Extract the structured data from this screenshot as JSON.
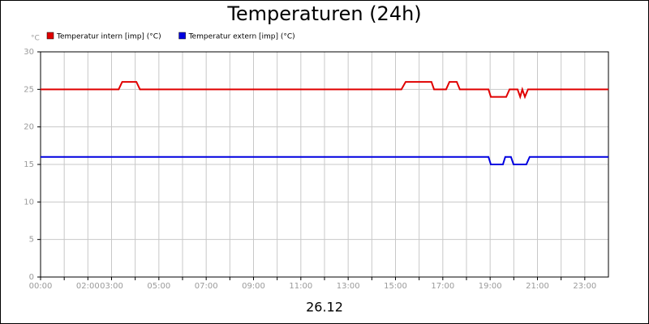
{
  "chart_data": {
    "type": "line",
    "title": "Temperaturen (24h)",
    "y_unit": "°C",
    "xlabel": "26.12",
    "xlim": [
      0,
      24
    ],
    "ylim": [
      0,
      30
    ],
    "yticks": [
      0,
      5,
      10,
      15,
      20,
      25,
      30
    ],
    "xticks": [
      {
        "value": 0,
        "label": "00:00"
      },
      {
        "value": 1,
        "label": null
      },
      {
        "value": 2,
        "label": "02:00"
      },
      {
        "value": 3,
        "label": "03:00"
      },
      {
        "value": 4,
        "label": null
      },
      {
        "value": 5,
        "label": "05:00"
      },
      {
        "value": 6,
        "label": null
      },
      {
        "value": 7,
        "label": "07:00"
      },
      {
        "value": 8,
        "label": null
      },
      {
        "value": 9,
        "label": "09:00"
      },
      {
        "value": 10,
        "label": null
      },
      {
        "value": 11,
        "label": "11:00"
      },
      {
        "value": 12,
        "label": null
      },
      {
        "value": 13,
        "label": "13:00"
      },
      {
        "value": 14,
        "label": null
      },
      {
        "value": 15,
        "label": "15:00"
      },
      {
        "value": 16,
        "label": null
      },
      {
        "value": 17,
        "label": "17:00"
      },
      {
        "value": 18,
        "label": null
      },
      {
        "value": 19,
        "label": "19:00"
      },
      {
        "value": 20,
        "label": null
      },
      {
        "value": 21,
        "label": "21:00"
      },
      {
        "value": 22,
        "label": null
      },
      {
        "value": 23,
        "label": "23:00"
      }
    ],
    "grid": true,
    "series": [
      {
        "name": "Temperatur intern [imp] (°C)",
        "color": "#e00000",
        "x": [
          0,
          3.3,
          3.45,
          4.05,
          4.2,
          15.25,
          15.43,
          16.52,
          16.63,
          17.14,
          17.28,
          17.59,
          17.72,
          18.93,
          19.03,
          19.68,
          19.82,
          20.16,
          20.27,
          20.36,
          20.47,
          20.6,
          24
        ],
        "values": [
          25,
          25,
          26,
          26,
          25,
          25,
          26,
          26,
          25,
          25,
          26,
          26,
          25,
          25,
          24,
          24,
          25,
          25,
          24,
          25,
          24,
          25,
          25
        ]
      },
      {
        "name": "Temperatur extern [imp] (°C)",
        "color": "#0000e0",
        "x": [
          0,
          18.93,
          19.03,
          19.54,
          19.64,
          19.88,
          19.99,
          20.53,
          20.67,
          24
        ],
        "values": [
          16,
          16,
          15,
          15,
          16,
          16,
          15,
          15,
          16,
          16
        ]
      }
    ]
  }
}
